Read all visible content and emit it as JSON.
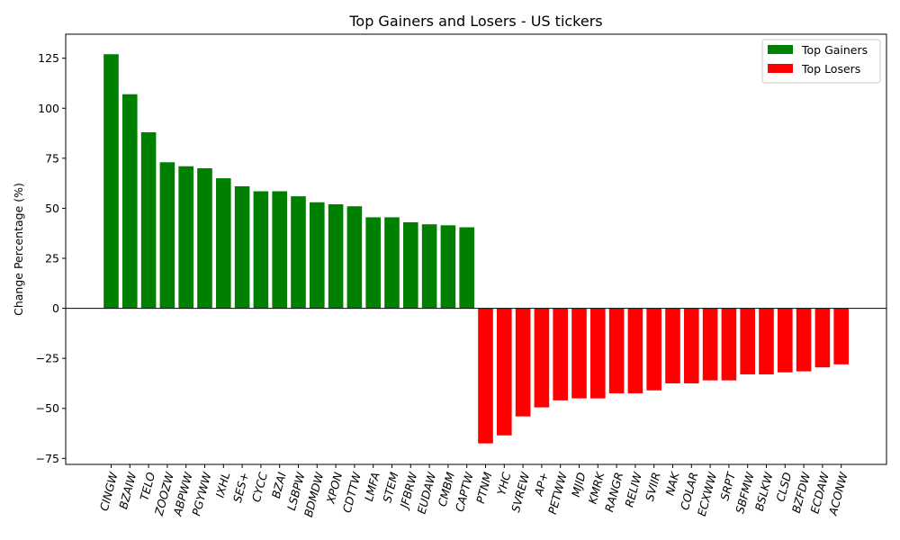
{
  "chart_data": {
    "type": "bar",
    "title": "Top Gainers and Losers - US tickers",
    "xlabel": "",
    "ylabel": "Change Percentage (%)",
    "ylim": [
      -78,
      137
    ],
    "yticks": [
      -75,
      -50,
      -25,
      0,
      25,
      50,
      75,
      100,
      125
    ],
    "grid": false,
    "legend_position": "top-right",
    "colors": {
      "gainers": "#008000",
      "losers": "#ff0000"
    },
    "series": [
      {
        "name": "Top Gainers",
        "categories": [
          "CINGW",
          "BZAIW",
          "TELO",
          "ZOOZW",
          "ABPWW",
          "PGYWW",
          "IXHL",
          "SES+",
          "CYCC",
          "BZAI",
          "LSBPW",
          "BDMDW",
          "XPON",
          "CDTTW",
          "LMFA",
          "STEM",
          "JFBRW",
          "EUDAW",
          "CMBM",
          "CAPTW"
        ],
        "values": [
          127,
          107,
          88,
          73,
          71,
          70,
          65,
          61,
          58.5,
          58.5,
          56,
          53,
          52,
          51,
          45.5,
          45.5,
          43,
          42,
          41.5,
          40.5
        ]
      },
      {
        "name": "Top Losers",
        "categories": [
          "PTNM",
          "YHC",
          "SVREW",
          "AP+",
          "PETWW",
          "MJID",
          "KMRK",
          "RANGR",
          "RELIW",
          "SVIIR",
          "NAK",
          "COLAR",
          "ECXWW",
          "SRPT",
          "SBFMW",
          "BSLKW",
          "CLSD",
          "BZFDW",
          "ECDAW",
          "ACONW"
        ],
        "values": [
          -67.5,
          -63.5,
          -54,
          -49.5,
          -46,
          -45,
          -45,
          -42.5,
          -42.5,
          -41,
          -37.5,
          -37.5,
          -36,
          -36,
          -33,
          -33,
          -32,
          -31.5,
          -29.5,
          -28
        ]
      }
    ]
  }
}
